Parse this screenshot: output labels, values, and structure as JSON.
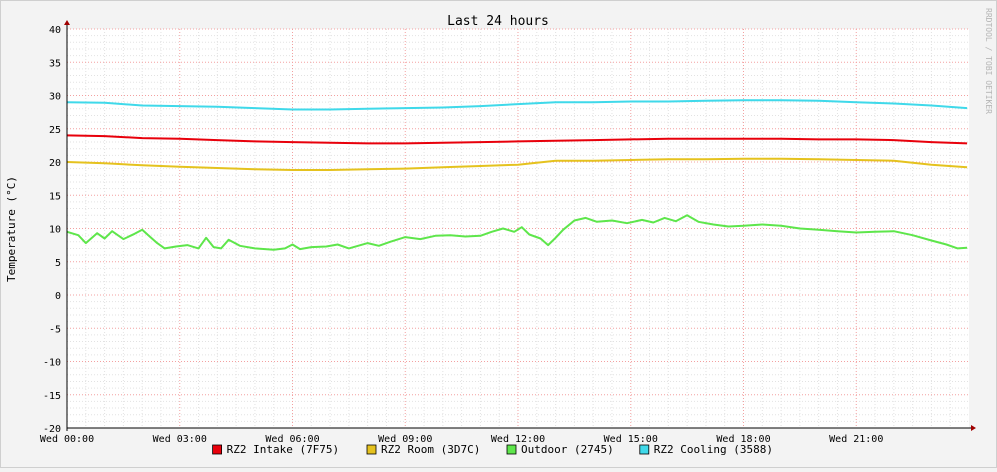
{
  "watermark": "RRDTOOL / TOBI OETIKER",
  "legend": [
    {
      "label": "RZ2 Intake (7F75)",
      "color": "#e8000b"
    },
    {
      "label": "RZ2 Room (3D7C)",
      "color": "#e5c21e"
    },
    {
      "label": "Outdoor (2745)",
      "color": "#5ee64b"
    },
    {
      "label": "RZ2 Cooling (3588)",
      "color": "#3fd9ea"
    }
  ],
  "chart_data": {
    "type": "line",
    "title": "Last 24 hours",
    "xlabel": "",
    "ylabel": "Temperature (°C)",
    "ylim": [
      -20,
      40
    ],
    "xlim": [
      0,
      24
    ],
    "x_unit": "hours since Wed 00:00",
    "yticks": [
      -20,
      -15,
      -10,
      -5,
      0,
      5,
      10,
      15,
      20,
      25,
      30,
      35,
      40
    ],
    "xticks": [
      {
        "value": 0,
        "label": "Wed 00:00"
      },
      {
        "value": 3,
        "label": "Wed 03:00"
      },
      {
        "value": 6,
        "label": "Wed 06:00"
      },
      {
        "value": 9,
        "label": "Wed 09:00"
      },
      {
        "value": 12,
        "label": "Wed 12:00"
      },
      {
        "value": 15,
        "label": "Wed 15:00"
      },
      {
        "value": 18,
        "label": "Wed 18:00"
      },
      {
        "value": 21,
        "label": "Wed 21:00"
      }
    ],
    "grid": true,
    "legend_position": "bottom",
    "series": [
      {
        "name": "RZ2 Intake (7F75)",
        "color": "#e8000b",
        "points": [
          [
            0,
            24.0
          ],
          [
            1,
            23.9
          ],
          [
            2,
            23.6
          ],
          [
            3,
            23.5
          ],
          [
            4,
            23.3
          ],
          [
            5,
            23.1
          ],
          [
            6,
            23.0
          ],
          [
            7,
            22.9
          ],
          [
            8,
            22.8
          ],
          [
            9,
            22.8
          ],
          [
            10,
            22.9
          ],
          [
            11,
            23.0
          ],
          [
            12,
            23.1
          ],
          [
            13,
            23.2
          ],
          [
            14,
            23.3
          ],
          [
            15,
            23.4
          ],
          [
            16,
            23.5
          ],
          [
            17,
            23.5
          ],
          [
            18,
            23.5
          ],
          [
            19,
            23.5
          ],
          [
            20,
            23.4
          ],
          [
            21,
            23.4
          ],
          [
            22,
            23.3
          ],
          [
            23,
            23.0
          ],
          [
            23.95,
            22.8
          ]
        ]
      },
      {
        "name": "RZ2 Room (3D7C)",
        "color": "#e5c21e",
        "points": [
          [
            0,
            20.0
          ],
          [
            1,
            19.8
          ],
          [
            2,
            19.5
          ],
          [
            3,
            19.3
          ],
          [
            4,
            19.1
          ],
          [
            5,
            18.9
          ],
          [
            6,
            18.8
          ],
          [
            7,
            18.8
          ],
          [
            8,
            18.9
          ],
          [
            9,
            19.0
          ],
          [
            10,
            19.2
          ],
          [
            11,
            19.4
          ],
          [
            12,
            19.6
          ],
          [
            13,
            20.2
          ],
          [
            14,
            20.2
          ],
          [
            15,
            20.3
          ],
          [
            16,
            20.4
          ],
          [
            17,
            20.4
          ],
          [
            18,
            20.5
          ],
          [
            19,
            20.5
          ],
          [
            20,
            20.4
          ],
          [
            21,
            20.3
          ],
          [
            22,
            20.2
          ],
          [
            23,
            19.6
          ],
          [
            23.95,
            19.2
          ]
        ]
      },
      {
        "name": "Outdoor (2745)",
        "color": "#5ee64b",
        "points": [
          [
            0,
            9.5
          ],
          [
            0.3,
            9.0
          ],
          [
            0.5,
            7.8
          ],
          [
            0.8,
            9.3
          ],
          [
            1.0,
            8.5
          ],
          [
            1.2,
            9.6
          ],
          [
            1.5,
            8.4
          ],
          [
            1.8,
            9.2
          ],
          [
            2.0,
            9.8
          ],
          [
            2.2,
            8.8
          ],
          [
            2.4,
            7.8
          ],
          [
            2.6,
            7.0
          ],
          [
            2.9,
            7.3
          ],
          [
            3.2,
            7.5
          ],
          [
            3.5,
            7.0
          ],
          [
            3.7,
            8.6
          ],
          [
            3.9,
            7.2
          ],
          [
            4.1,
            7.0
          ],
          [
            4.3,
            8.3
          ],
          [
            4.6,
            7.4
          ],
          [
            5.0,
            7.0
          ],
          [
            5.5,
            6.8
          ],
          [
            5.8,
            7.0
          ],
          [
            6.0,
            7.6
          ],
          [
            6.2,
            6.9
          ],
          [
            6.5,
            7.2
          ],
          [
            6.9,
            7.3
          ],
          [
            7.2,
            7.6
          ],
          [
            7.5,
            7.0
          ],
          [
            8.0,
            7.8
          ],
          [
            8.3,
            7.4
          ],
          [
            8.6,
            8.0
          ],
          [
            9.0,
            8.7
          ],
          [
            9.4,
            8.4
          ],
          [
            9.8,
            8.9
          ],
          [
            10.2,
            9.0
          ],
          [
            10.6,
            8.8
          ],
          [
            11.0,
            8.9
          ],
          [
            11.3,
            9.5
          ],
          [
            11.6,
            10.0
          ],
          [
            11.9,
            9.5
          ],
          [
            12.1,
            10.2
          ],
          [
            12.3,
            9.1
          ],
          [
            12.6,
            8.5
          ],
          [
            12.8,
            7.5
          ],
          [
            13.0,
            8.6
          ],
          [
            13.2,
            9.8
          ],
          [
            13.5,
            11.2
          ],
          [
            13.8,
            11.6
          ],
          [
            14.1,
            11.0
          ],
          [
            14.5,
            11.2
          ],
          [
            14.9,
            10.8
          ],
          [
            15.3,
            11.3
          ],
          [
            15.6,
            10.9
          ],
          [
            15.9,
            11.6
          ],
          [
            16.2,
            11.1
          ],
          [
            16.5,
            12.0
          ],
          [
            16.8,
            11.0
          ],
          [
            17.2,
            10.6
          ],
          [
            17.6,
            10.3
          ],
          [
            18.0,
            10.4
          ],
          [
            18.5,
            10.6
          ],
          [
            19.0,
            10.4
          ],
          [
            19.5,
            10.0
          ],
          [
            20.0,
            9.8
          ],
          [
            20.5,
            9.6
          ],
          [
            21.0,
            9.4
          ],
          [
            21.5,
            9.5
          ],
          [
            22.0,
            9.6
          ],
          [
            22.5,
            9.0
          ],
          [
            23.0,
            8.2
          ],
          [
            23.4,
            7.6
          ],
          [
            23.7,
            7.0
          ],
          [
            23.95,
            7.1
          ]
        ]
      },
      {
        "name": "RZ2 Cooling (3588)",
        "color": "#3fd9ea",
        "points": [
          [
            0,
            29.0
          ],
          [
            1,
            28.9
          ],
          [
            2,
            28.5
          ],
          [
            3,
            28.4
          ],
          [
            4,
            28.3
          ],
          [
            5,
            28.1
          ],
          [
            6,
            27.9
          ],
          [
            7,
            27.9
          ],
          [
            8,
            28.0
          ],
          [
            9,
            28.1
          ],
          [
            10,
            28.2
          ],
          [
            11,
            28.4
          ],
          [
            12,
            28.7
          ],
          [
            13,
            29.0
          ],
          [
            14,
            29.0
          ],
          [
            15,
            29.1
          ],
          [
            16,
            29.1
          ],
          [
            17,
            29.2
          ],
          [
            18,
            29.3
          ],
          [
            19,
            29.3
          ],
          [
            20,
            29.2
          ],
          [
            21,
            29.0
          ],
          [
            22,
            28.8
          ],
          [
            23,
            28.5
          ],
          [
            23.95,
            28.1
          ]
        ]
      }
    ]
  }
}
